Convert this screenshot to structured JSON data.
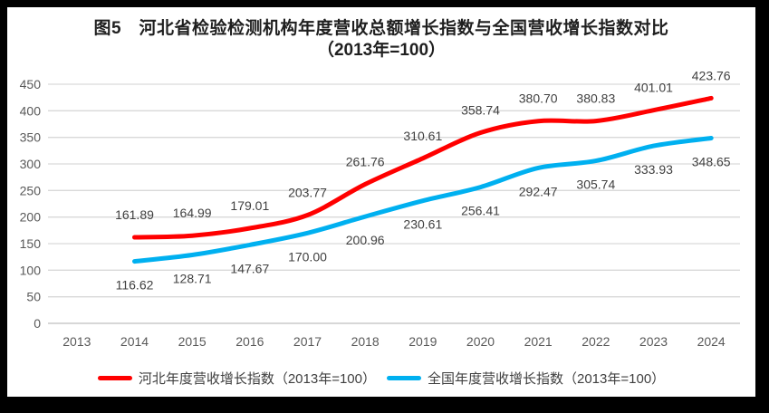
{
  "colors": {
    "frame": "#000000",
    "background": "#ffffff",
    "gridline": "#d9d9d9",
    "axis_line": "#bfbfbf",
    "tick_text": "#595959",
    "data_label_text": "#404040"
  },
  "chart_data": {
    "type": "line",
    "title": "图5　河北省检验检测机构年度营收总额增长指数与全国营收增长指数对比",
    "subtitle": "（2013年=100）",
    "categories": [
      "2013",
      "2014",
      "2015",
      "2016",
      "2017",
      "2018",
      "2019",
      "2020",
      "2021",
      "2022",
      "2023",
      "2024"
    ],
    "series": [
      {
        "name": "河北年度营收增长指数（2013年=100）",
        "color": "#ff0000",
        "start_index": 1,
        "label_position": "above",
        "values": [
          161.89,
          164.99,
          179.01,
          203.77,
          261.76,
          310.61,
          358.74,
          380.7,
          380.83,
          401.01,
          423.76
        ]
      },
      {
        "name": "全国年度营收增长指数（2013年=100）",
        "color": "#00b0f0",
        "start_index": 1,
        "label_position": "below",
        "values": [
          116.62,
          128.71,
          147.67,
          170.0,
          200.96,
          230.61,
          256.41,
          292.47,
          305.74,
          333.93,
          348.65
        ]
      }
    ],
    "ylim": [
      0,
      450
    ],
    "ytick_step": 50,
    "yticks": [
      0,
      50,
      100,
      150,
      200,
      250,
      300,
      350,
      400,
      450
    ],
    "grid": true,
    "smooth_lines": true,
    "legend_position": "bottom"
  }
}
